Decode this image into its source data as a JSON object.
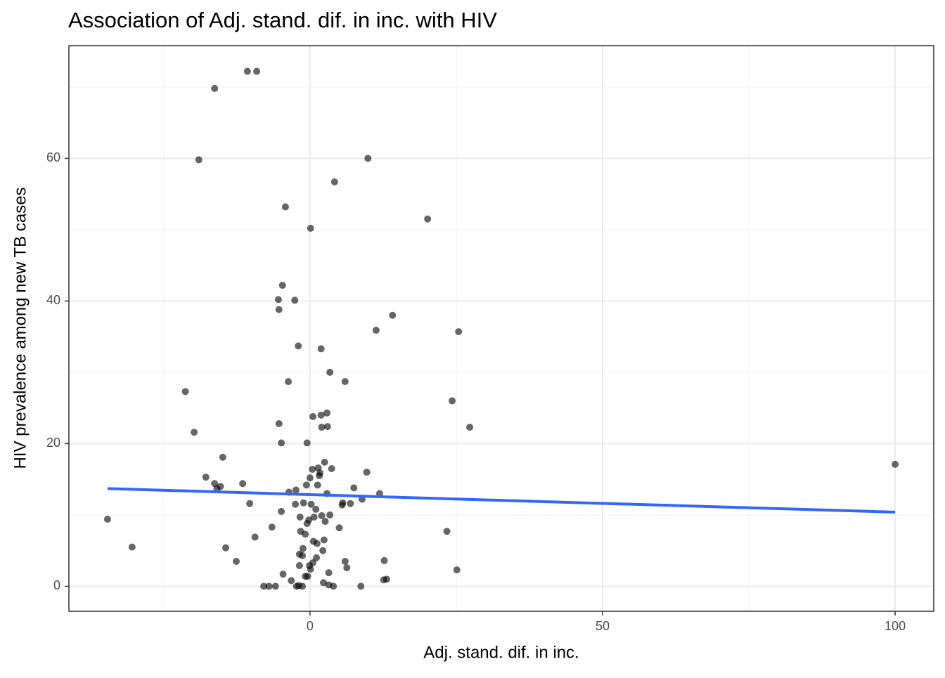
{
  "chart_data": {
    "type": "scatter",
    "title": "Association of Adj. stand. dif. in inc. with HIV",
    "x_label": "Adj. stand. dif. in inc.",
    "y_label": "HIV prevalence among new TB cases",
    "xlim": [
      -41.2,
      106.6
    ],
    "ylim": [
      -3.5,
      75.8
    ],
    "xticks": [
      0,
      50,
      100
    ],
    "yticks": [
      0,
      20,
      40,
      60
    ],
    "minor_xticks": [
      -25,
      25,
      75
    ],
    "minor_yticks": [
      10,
      30,
      50,
      70
    ],
    "grid": true,
    "color": "#000000",
    "x": [
      -34.6,
      -30.4,
      -21.3,
      -19.8,
      -19.0,
      -17.8,
      -16.3,
      -16.3,
      -15.9,
      -15.3,
      -14.9,
      -14.4,
      -12.6,
      -11.5,
      -10.7,
      -10.3,
      -9.4,
      -9.1,
      -7.9,
      -7.0,
      -6.5,
      -5.9,
      -5.4,
      -5.3,
      -5.3,
      -4.9,
      -4.9,
      -4.7,
      -4.6,
      -4.2,
      -3.7,
      -3.6,
      -3.2,
      -2.6,
      -2.5,
      -2.4,
      -2.0,
      -1.9,
      -1.8,
      -1.7,
      -1.6,
      -1.3,
      -1.2,
      -1.1,
      -0.8,
      -0.6,
      -0.5,
      -0.5,
      -0.4,
      -0.2,
      -0.1,
      0,
      0.1,
      0.2,
      0.4,
      0.5,
      0.6,
      0.7,
      1.0,
      1.1,
      1.2,
      1.3,
      1.4,
      1.6,
      1.7,
      1.9,
      1.9,
      2.0,
      2.0,
      2.2,
      2.3,
      2.4,
      2.5,
      2.6,
      2.9,
      2.9,
      3.0,
      3.2,
      3.2,
      3.4,
      3.4,
      3.7,
      4.0,
      4.2,
      5.0,
      5.5,
      5.6,
      6.0,
      6.0,
      6.3,
      6.9,
      7.5,
      8.7,
      8.9,
      9.7,
      9.9,
      11.3,
      11.9,
      12.6,
      12.7,
      13.1,
      14.1,
      20.1,
      23.4,
      24.3,
      25.1,
      25.4,
      27.3,
      100,
      -2.3,
      -1.3,
      -0.8,
      0.1,
      0.5,
      -1.8
    ],
    "y": [
      9.4,
      5.5,
      27.3,
      21.6,
      59.8,
      15.3,
      69.8,
      14.4,
      13.7,
      14.0,
      18.1,
      5.4,
      3.5,
      14.4,
      72.2,
      11.6,
      6.9,
      72.2,
      0,
      0,
      8.3,
      0,
      40.2,
      38.8,
      22.8,
      20.1,
      10.5,
      42.2,
      1.7,
      53.2,
      28.7,
      13.2,
      0.8,
      40.1,
      11.5,
      13.5,
      33.7,
      0.1,
      4.5,
      9.7,
      7.7,
      4.3,
      5.3,
      11.7,
      7.3,
      14.2,
      20.1,
      8.8,
      1.4,
      9.3,
      2.9,
      15.2,
      50.2,
      11.5,
      16.4,
      23.8,
      6.3,
      9.7,
      10.8,
      4.0,
      6.0,
      14.2,
      16.6,
      15.5,
      15.9,
      33.3,
      24.0,
      22.3,
      9.9,
      5.0,
      0.5,
      6.5,
      17.4,
      9.1,
      24.3,
      13.0,
      22.4,
      0.2,
      1.9,
      10.0,
      30.0,
      16.5,
      0,
      56.7,
      8.2,
      11.4,
      11.7,
      28.7,
      3.5,
      2.6,
      11.6,
      13.8,
      0,
      12.2,
      16.0,
      60.0,
      35.9,
      13.0,
      0.9,
      3.6,
      1.0,
      38.0,
      51.5,
      7.7,
      26.0,
      2.3,
      35.7,
      22.3,
      17.1,
      0,
      0,
      1.4,
      2.4,
      3.3,
      2.9
    ],
    "trend_line": {
      "color": "#3366FF",
      "x": [
        -34.6,
        100
      ],
      "y": [
        13.7,
        10.4
      ]
    }
  }
}
